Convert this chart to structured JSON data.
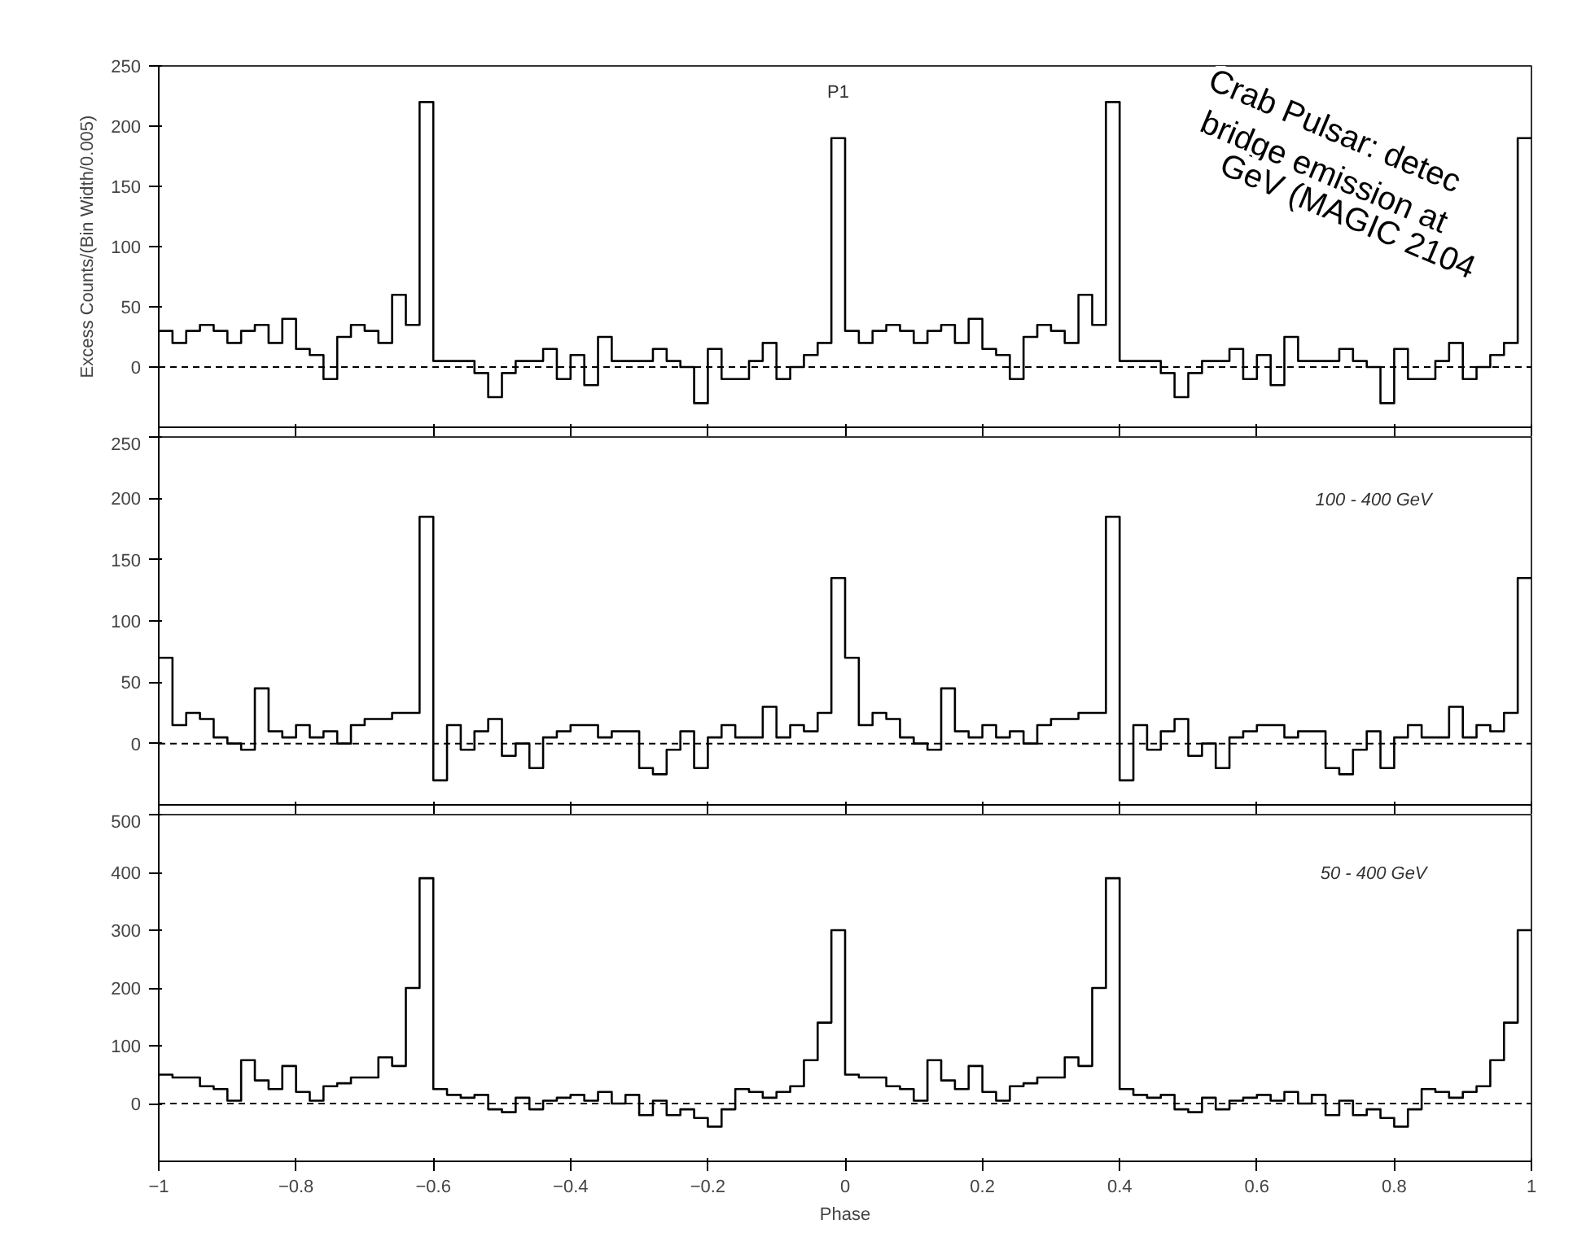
{
  "chart_data": [
    {
      "type": "histogram",
      "ylabel": "Excess Counts/(Bin Width/0.005)",
      "color": "#000000",
      "xlim": [
        -1,
        1
      ],
      "ylim": [
        -50,
        250
      ],
      "xticks": [
        -1,
        -0.8,
        -0.6,
        -0.4,
        -0.2,
        0,
        0.2,
        0.4,
        0.6,
        0.8,
        1
      ],
      "yticks": [
        0,
        50,
        100,
        150,
        200,
        250
      ],
      "tick_labels": "y",
      "grid": false,
      "ref_lines": [
        {
          "axis": "y",
          "value": 0,
          "line_style": "dashed"
        }
      ],
      "annotations": [
        {
          "text": "P1",
          "x": -0.01,
          "y": 190
        },
        "Crab Pulsar: detec",
        "bridge emission at",
        "GeV (MAGIC 2104"
      ],
      "bins": [
        -1,
        -0.98,
        -0.96,
        -0.94,
        -0.92,
        -0.9,
        -0.88,
        -0.86,
        -0.84,
        -0.82,
        -0.8,
        -0.78,
        -0.76,
        -0.74,
        -0.72,
        -0.7,
        -0.68,
        -0.66,
        -0.64,
        -0.62,
        -0.6,
        -0.58,
        -0.56,
        -0.54,
        -0.52,
        -0.5,
        -0.48,
        -0.46,
        -0.44,
        -0.42,
        -0.4,
        -0.38,
        -0.36,
        -0.34,
        -0.32,
        -0.3,
        -0.28,
        -0.26,
        -0.24,
        -0.22,
        -0.2,
        -0.18,
        -0.16,
        -0.14,
        -0.12,
        -0.1,
        -0.08,
        -0.06,
        -0.04,
        -0.02,
        0,
        0.02,
        0.04,
        0.06,
        0.08,
        0.1,
        0.12,
        0.14,
        0.16,
        0.18,
        0.2,
        0.22,
        0.24,
        0.26,
        0.28,
        0.3,
        0.32,
        0.34,
        0.36,
        0.38,
        0.4,
        0.42,
        0.44,
        0.46,
        0.48,
        0.5,
        0.52,
        0.54,
        0.56,
        0.58,
        0.6,
        0.62,
        0.64,
        0.66,
        0.68,
        0.7,
        0.72,
        0.74,
        0.76,
        0.78,
        0.8,
        0.82,
        0.84,
        0.86,
        0.88,
        0.9,
        0.92,
        0.94,
        0.96,
        0.98,
        1
      ],
      "values": [
        30,
        20,
        30,
        35,
        30,
        20,
        30,
        35,
        20,
        40,
        15,
        10,
        -10,
        25,
        35,
        30,
        20,
        60,
        35,
        220,
        5,
        5,
        5,
        -5,
        -25,
        -5,
        5,
        5,
        15,
        -10,
        10,
        -15,
        25,
        5,
        5,
        5,
        15,
        5,
        0,
        -30,
        15,
        -10,
        -10,
        5,
        20,
        -10,
        0,
        10,
        20,
        190,
        30,
        20,
        30,
        35,
        30,
        20,
        30,
        35,
        20,
        40,
        15,
        10,
        -10,
        25,
        35,
        30,
        20,
        60,
        35,
        220,
        5,
        5,
        5,
        -5,
        -25,
        -5,
        5,
        5,
        15,
        -10,
        10,
        -15,
        25,
        5,
        5,
        5,
        15,
        5,
        0,
        -30,
        15,
        -10,
        -10,
        5,
        20,
        -10,
        0,
        10,
        20,
        190
      ]
    },
    {
      "type": "histogram",
      "color": "#000000",
      "xlim": [
        -1,
        1
      ],
      "ylim": [
        -50,
        250
      ],
      "xticks": [
        -1,
        -0.8,
        -0.6,
        -0.4,
        -0.2,
        0,
        0.2,
        0.4,
        0.6,
        0.8,
        1
      ],
      "yticks": [
        0,
        50,
        100,
        150,
        200,
        250
      ],
      "tick_labels": "y",
      "grid": false,
      "ref_lines": [
        {
          "axis": "y",
          "value": 0,
          "line_style": "dashed"
        }
      ],
      "annotations": [
        "100 - 400 GeV"
      ],
      "bins": [
        -1,
        -0.98,
        -0.96,
        -0.94,
        -0.92,
        -0.9,
        -0.88,
        -0.86,
        -0.84,
        -0.82,
        -0.8,
        -0.78,
        -0.76,
        -0.74,
        -0.72,
        -0.7,
        -0.68,
        -0.66,
        -0.64,
        -0.62,
        -0.6,
        -0.58,
        -0.56,
        -0.54,
        -0.52,
        -0.5,
        -0.48,
        -0.46,
        -0.44,
        -0.42,
        -0.4,
        -0.38,
        -0.36,
        -0.34,
        -0.32,
        -0.3,
        -0.28,
        -0.26,
        -0.24,
        -0.22,
        -0.2,
        -0.18,
        -0.16,
        -0.14,
        -0.12,
        -0.1,
        -0.08,
        -0.06,
        -0.04,
        -0.02,
        0,
        0.02,
        0.04,
        0.06,
        0.08,
        0.1,
        0.12,
        0.14,
        0.16,
        0.18,
        0.2,
        0.22,
        0.24,
        0.26,
        0.28,
        0.3,
        0.32,
        0.34,
        0.36,
        0.38,
        0.4,
        0.42,
        0.44,
        0.46,
        0.48,
        0.5,
        0.52,
        0.54,
        0.56,
        0.58,
        0.6,
        0.62,
        0.64,
        0.66,
        0.68,
        0.7,
        0.72,
        0.74,
        0.76,
        0.78,
        0.8,
        0.82,
        0.84,
        0.86,
        0.88,
        0.9,
        0.92,
        0.94,
        0.96,
        0.98,
        1
      ],
      "values": [
        70,
        15,
        25,
        20,
        5,
        0,
        -5,
        45,
        10,
        5,
        15,
        5,
        10,
        0,
        15,
        20,
        20,
        25,
        25,
        185,
        -30,
        15,
        -5,
        10,
        20,
        -10,
        0,
        -20,
        5,
        10,
        15,
        15,
        5,
        10,
        10,
        -20,
        -25,
        -5,
        10,
        -20,
        5,
        15,
        5,
        5,
        30,
        5,
        15,
        10,
        25,
        135,
        70,
        15,
        25,
        20,
        5,
        0,
        -5,
        45,
        10,
        5,
        15,
        5,
        10,
        0,
        15,
        20,
        20,
        25,
        25,
        185,
        -30,
        15,
        -5,
        10,
        20,
        -10,
        0,
        -20,
        5,
        10,
        15,
        15,
        5,
        10,
        10,
        -20,
        -25,
        -5,
        10,
        -20,
        5,
        15,
        5,
        5,
        30,
        5,
        15,
        10,
        25,
        135
      ]
    },
    {
      "type": "histogram",
      "xlabel": "Phase",
      "color": "#000000",
      "xlim": [
        -1,
        1
      ],
      "ylim": [
        -100,
        500
      ],
      "xticks": [
        -1,
        -0.8,
        -0.6,
        -0.4,
        -0.2,
        0,
        0.2,
        0.4,
        0.6,
        0.8,
        1
      ],
      "yticks": [
        0,
        100,
        200,
        300,
        400,
        500
      ],
      "grid": false,
      "ref_lines": [
        {
          "axis": "y",
          "value": 0,
          "line_style": "dashed"
        }
      ],
      "annotations": [
        "50 - 400 GeV"
      ],
      "bins": [
        -1,
        -0.98,
        -0.96,
        -0.94,
        -0.92,
        -0.9,
        -0.88,
        -0.86,
        -0.84,
        -0.82,
        -0.8,
        -0.78,
        -0.76,
        -0.74,
        -0.72,
        -0.7,
        -0.68,
        -0.66,
        -0.64,
        -0.62,
        -0.6,
        -0.58,
        -0.56,
        -0.54,
        -0.52,
        -0.5,
        -0.48,
        -0.46,
        -0.44,
        -0.42,
        -0.4,
        -0.38,
        -0.36,
        -0.34,
        -0.32,
        -0.3,
        -0.28,
        -0.26,
        -0.24,
        -0.22,
        -0.2,
        -0.18,
        -0.16,
        -0.14,
        -0.12,
        -0.1,
        -0.08,
        -0.06,
        -0.04,
        -0.02,
        0,
        0.02,
        0.04,
        0.06,
        0.08,
        0.1,
        0.12,
        0.14,
        0.16,
        0.18,
        0.2,
        0.22,
        0.24,
        0.26,
        0.28,
        0.3,
        0.32,
        0.34,
        0.36,
        0.38,
        0.4,
        0.42,
        0.44,
        0.46,
        0.48,
        0.5,
        0.52,
        0.54,
        0.56,
        0.58,
        0.6,
        0.62,
        0.64,
        0.66,
        0.68,
        0.7,
        0.72,
        0.74,
        0.76,
        0.78,
        0.8,
        0.82,
        0.84,
        0.86,
        0.88,
        0.9,
        0.92,
        0.94,
        0.96,
        0.98,
        1
      ],
      "values": [
        50,
        45,
        45,
        30,
        25,
        5,
        75,
        40,
        25,
        65,
        20,
        5,
        30,
        35,
        45,
        45,
        80,
        65,
        200,
        390,
        25,
        15,
        10,
        15,
        -10,
        -15,
        10,
        -10,
        5,
        10,
        15,
        5,
        20,
        0,
        15,
        -20,
        5,
        -20,
        -10,
        -25,
        -40,
        -10,
        25,
        20,
        10,
        20,
        30,
        75,
        140,
        300,
        50,
        45,
        45,
        30,
        25,
        5,
        75,
        40,
        25,
        65,
        20,
        5,
        30,
        35,
        45,
        45,
        80,
        65,
        200,
        390,
        25,
        15,
        10,
        15,
        -10,
        -15,
        10,
        -10,
        5,
        10,
        15,
        5,
        20,
        0,
        15,
        -20,
        5,
        -20,
        -10,
        -25,
        -40,
        -10,
        25,
        20,
        10,
        20,
        30,
        75,
        140,
        300
      ]
    }
  ]
}
